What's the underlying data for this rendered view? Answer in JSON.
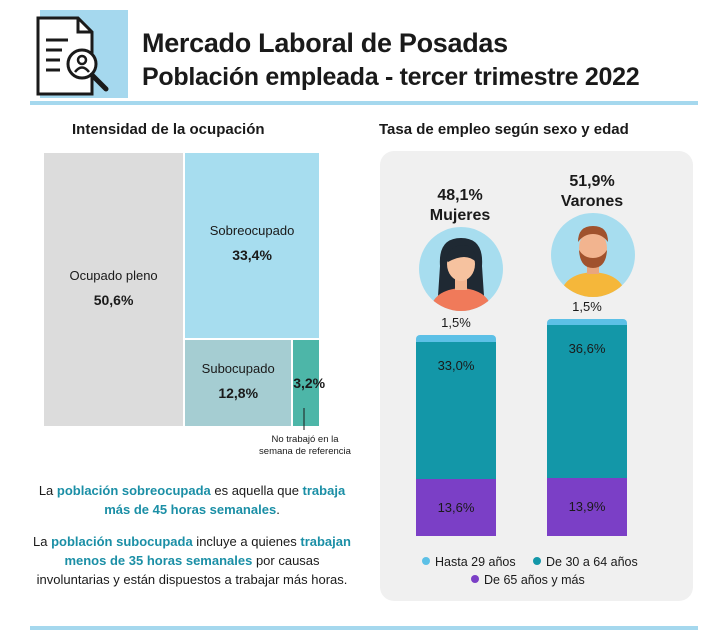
{
  "header": {
    "title": "Mercado Laboral de Posadas",
    "subtitle": "Población empleada - tercer trimestre 2022",
    "icon": "document-search-icon"
  },
  "left": {
    "title": "Intensidad de la ocupación",
    "note_line1": "No trabajó en la",
    "note_line2": "semana de referencia",
    "para1": {
      "t1": "La ",
      "h1": "población sobreocupada",
      "t2": " es aquella que ",
      "h2": "trabaja más de 45 horas semanales",
      "t3": "."
    },
    "para2": {
      "t1": "La ",
      "h1": "población subocupada",
      "t2": " incluye a quienes ",
      "h2": "trabajan menos de 35 horas semanales",
      "t3": " por causas involuntarias y están dispuestos a trabajar más horas."
    }
  },
  "right": {
    "title": "Tasa de empleo según sexo y edad",
    "women": {
      "pct": "48,1%",
      "label": "Mujeres",
      "icon": "woman-avatar-icon"
    },
    "men": {
      "pct": "51,9%",
      "label": "Varones",
      "icon": "man-avatar-icon"
    },
    "legend": [
      "Hasta 29 años",
      "De 30 a 64 años",
      "De 65 años y más"
    ]
  },
  "colors": {
    "ocupado_pleno": "#dcdcdc",
    "sobreocupado": "#a7ddef",
    "subocupado": "#a5cdd2",
    "no_trabajo": "#4db6a8",
    "hasta29": "#5cc0e6",
    "de30a64": "#1397a8",
    "de65": "#7b3fc6",
    "accent": "#1b8fa6"
  },
  "chart_data": [
    {
      "type": "treemap",
      "title": "Intensidad de la ocupación",
      "categories": [
        "Ocupado pleno",
        "Sobreocupado",
        "Subocupado",
        ""
      ],
      "values": [
        50.6,
        33.4,
        12.8,
        3.2
      ],
      "value_labels": [
        "50,6%",
        "33,4%",
        "12,8%",
        "3,2%"
      ]
    },
    {
      "type": "bar",
      "stacked": true,
      "title": "Tasa de empleo según sexo y edad",
      "categories": [
        "Mujeres",
        "Varones"
      ],
      "totals": [
        48.1,
        51.9
      ],
      "series": [
        {
          "name": "Hasta 29 años",
          "values": [
            1.5,
            1.5
          ],
          "labels": [
            "1,5%",
            "1,5%"
          ]
        },
        {
          "name": "De 30 a 64 años",
          "values": [
            33.0,
            36.6
          ],
          "labels": [
            "33,0%",
            "36,6%"
          ]
        },
        {
          "name": "De 65 años y más",
          "values": [
            13.6,
            13.9
          ],
          "labels": [
            "13,6%",
            "13,9%"
          ]
        }
      ]
    }
  ]
}
